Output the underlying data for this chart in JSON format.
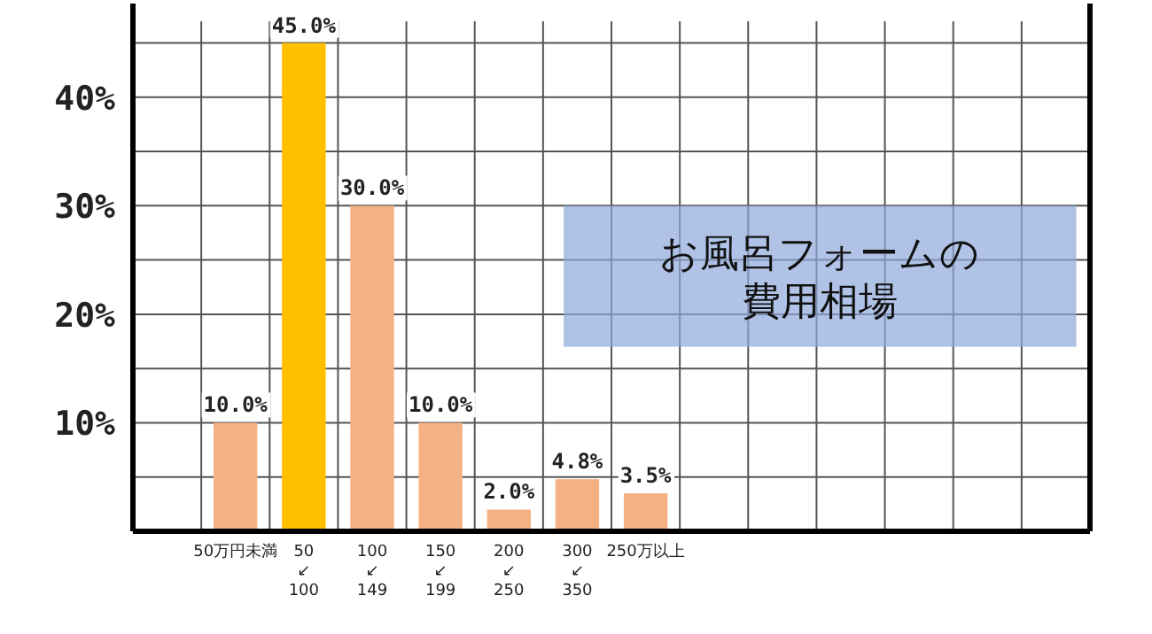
{
  "chart_data": {
    "type": "bar",
    "categories": [
      null,
      "50万円未満",
      "50\n↙\n100",
      "100\n↙\n149",
      "150\n↙\n199",
      "200\n↙\n250",
      "300\n↙\n350",
      "250万以上",
      null,
      null,
      null,
      null,
      null,
      null
    ],
    "values": [
      null,
      10.0,
      45.0,
      30.0,
      10.0,
      2.0,
      4.8,
      3.5,
      null,
      null,
      null,
      null,
      null,
      null
    ],
    "colors": [
      null,
      "#f4b183",
      "#ffc000",
      "#f4b183",
      "#f4b183",
      "#f4b183",
      "#f4b183",
      "#f4b183",
      null,
      null,
      null,
      null,
      null,
      null
    ],
    "value_labels": [
      null,
      "10.0%",
      "45.0%",
      "30.0%",
      "10.0%",
      "2.0%",
      "4.8%",
      "3.5%",
      null,
      null,
      null,
      null,
      null,
      null
    ],
    "ylim": [
      0,
      47
    ],
    "yticks": [
      {
        "value": 10,
        "label": "10%"
      },
      {
        "value": 20,
        "label": "20%"
      },
      {
        "value": 30,
        "label": "30%"
      },
      {
        "value": 40,
        "label": "40%"
      }
    ],
    "grid": true,
    "annotations": [
      "お風呂フォームの費用相場"
    ]
  }
}
